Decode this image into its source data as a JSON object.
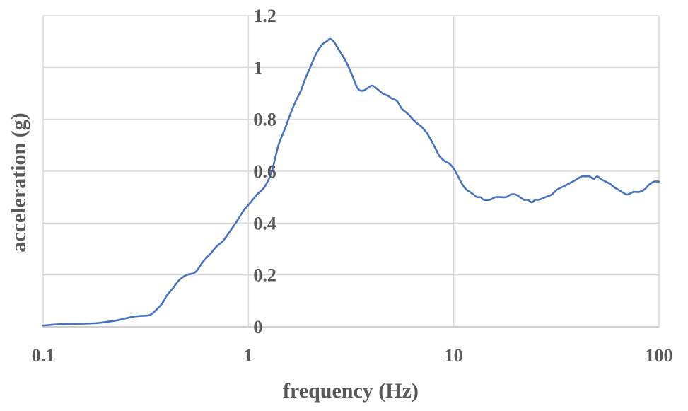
{
  "chart_data": {
    "type": "line",
    "xscale": "log",
    "xlim": [
      0.1,
      100
    ],
    "ylim": [
      0,
      1.2
    ],
    "xticks": [
      0.1,
      1,
      10,
      100
    ],
    "xtick_labels": [
      "0.1",
      "1",
      "10",
      "100"
    ],
    "yticks": [
      0,
      0.2,
      0.4,
      0.6,
      0.8,
      1,
      1.2
    ],
    "ytick_labels": [
      "0",
      "0.2",
      "0.4",
      "0.6",
      "0.8",
      "1",
      "1.2"
    ],
    "xlabel": "frequency (Hz)",
    "ylabel": "acceleration (g)",
    "grid": true,
    "legend": "none",
    "series": [
      {
        "color": "#4472C4",
        "x": [
          0.1,
          0.12,
          0.15,
          0.18,
          0.2,
          0.23,
          0.25,
          0.28,
          0.3,
          0.33,
          0.35,
          0.38,
          0.4,
          0.43,
          0.46,
          0.5,
          0.55,
          0.6,
          0.65,
          0.7,
          0.75,
          0.8,
          0.85,
          0.9,
          0.95,
          1.0,
          1.05,
          1.1,
          1.2,
          1.3,
          1.4,
          1.5,
          1.6,
          1.7,
          1.8,
          1.9,
          2.0,
          2.1,
          2.2,
          2.3,
          2.4,
          2.5,
          2.6,
          2.7,
          2.8,
          2.9,
          3.0,
          3.2,
          3.4,
          3.6,
          3.8,
          4.0,
          4.2,
          4.5,
          4.8,
          5.0,
          5.3,
          5.6,
          6.0,
          6.5,
          7.0,
          7.5,
          8.0,
          8.5,
          9.0,
          9.5,
          10.0,
          10.5,
          11.0,
          11.5,
          12.0,
          12.5,
          13.0,
          13.5,
          14.0,
          15.0,
          16.0,
          17.0,
          18.0,
          19.0,
          20.0,
          21.0,
          22.0,
          23.0,
          24.0,
          25.0,
          26.0,
          28.0,
          30.0,
          32.0,
          34.0,
          36.0,
          38.0,
          40.0,
          42.0,
          44.0,
          46.0,
          48.0,
          50.0,
          52.0,
          55.0,
          58.0,
          60.0,
          63.0,
          66.0,
          70.0,
          75.0,
          80.0,
          85.0,
          90.0,
          95.0,
          100.0
        ],
        "y": [
          0.005,
          0.01,
          0.012,
          0.014,
          0.018,
          0.025,
          0.032,
          0.04,
          0.042,
          0.045,
          0.06,
          0.09,
          0.12,
          0.15,
          0.18,
          0.2,
          0.21,
          0.25,
          0.28,
          0.31,
          0.33,
          0.36,
          0.39,
          0.42,
          0.45,
          0.47,
          0.49,
          0.51,
          0.54,
          0.6,
          0.7,
          0.76,
          0.82,
          0.87,
          0.91,
          0.96,
          1.0,
          1.04,
          1.07,
          1.09,
          1.1,
          1.11,
          1.1,
          1.08,
          1.06,
          1.04,
          1.02,
          0.97,
          0.92,
          0.91,
          0.92,
          0.93,
          0.92,
          0.9,
          0.89,
          0.88,
          0.87,
          0.84,
          0.82,
          0.79,
          0.77,
          0.74,
          0.7,
          0.66,
          0.64,
          0.63,
          0.61,
          0.58,
          0.55,
          0.53,
          0.52,
          0.51,
          0.5,
          0.5,
          0.49,
          0.49,
          0.5,
          0.5,
          0.5,
          0.51,
          0.51,
          0.5,
          0.49,
          0.49,
          0.48,
          0.49,
          0.49,
          0.5,
          0.51,
          0.53,
          0.54,
          0.55,
          0.56,
          0.57,
          0.58,
          0.58,
          0.58,
          0.57,
          0.58,
          0.57,
          0.56,
          0.55,
          0.54,
          0.53,
          0.52,
          0.51,
          0.52,
          0.52,
          0.53,
          0.55,
          0.56,
          0.56
        ]
      }
    ]
  }
}
